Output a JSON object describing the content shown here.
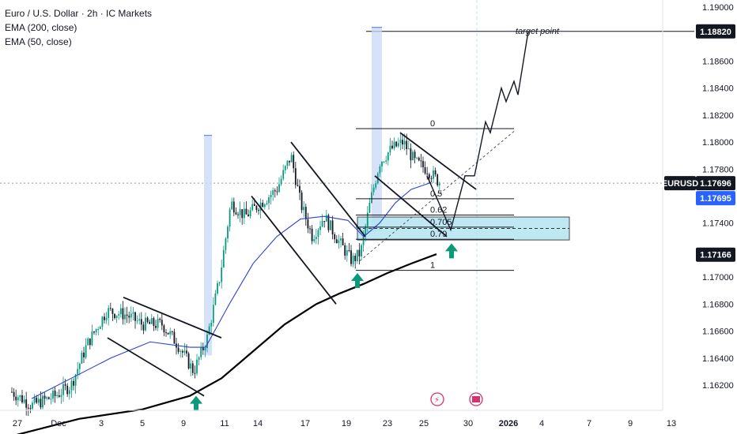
{
  "legend": {
    "title": "Euro / U.S. Dollar · 2h · IC Markets",
    "ema200": "EMA (200, close)",
    "ema50": "EMA (50, close)"
  },
  "colors": {
    "up": "#089981",
    "down": "#131722",
    "ema50": "#2a3fd6",
    "ema200": "#000000",
    "zone": "#b3e5f0",
    "zone_border": "#2a2a2a",
    "tag_dark": "#131722",
    "tag_blue": "#2962ff",
    "projection": "#c8d8f8",
    "arrow": "#0a9a7a",
    "event_red": "#d6336c"
  },
  "chart_data": {
    "type": "candlestick",
    "symbol": "EURUSD",
    "y_axis": {
      "range": [
        1.1605,
        1.1905
      ],
      "ticks": [
        "1.19000",
        "1.18600",
        "1.18400",
        "1.18200",
        "1.18000",
        "1.17800",
        "1.17400",
        "1.17000",
        "1.16800",
        "1.16600",
        "1.16400",
        "1.16200"
      ]
    },
    "x_axis": {
      "ticks": [
        "27",
        "Dec",
        "3",
        "5",
        "9",
        "11",
        "14",
        "17",
        "19",
        "23",
        "25",
        "30",
        "2026",
        "4",
        "7",
        "9",
        "13"
      ]
    },
    "price_tags": {
      "target": "1.18820",
      "symbol_label": "EURUSD",
      "last": "1.17696",
      "ema50_value": "1.17695",
      "ema200_value": "1.17166"
    },
    "annotations": {
      "target_label": "target point",
      "fib_levels": [
        {
          "label": "0",
          "price": 1.181
        },
        {
          "label": "0.5",
          "price": 1.1758
        },
        {
          "label": "0.62",
          "price": 1.1746
        },
        {
          "label": "0.705",
          "price": 1.1737
        },
        {
          "label": "0.79",
          "price": 1.1728
        },
        {
          "label": "1",
          "price": 1.1705
        }
      ],
      "demand_zone": {
        "from_price": 1.17275,
        "to_price": 1.17445
      }
    }
  }
}
